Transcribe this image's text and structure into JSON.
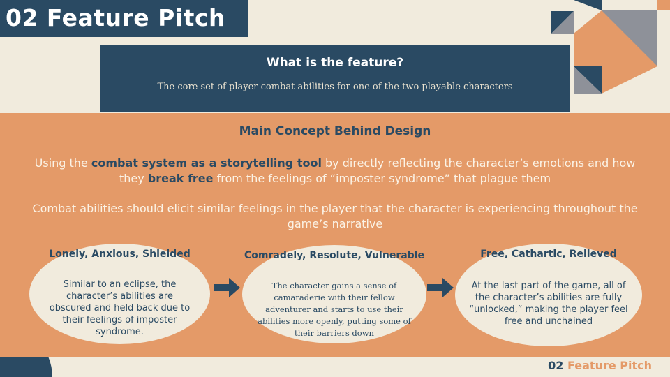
{
  "header": {
    "title": "02 Feature Pitch"
  },
  "feature": {
    "question": "What is the feature?",
    "answer": "The core set of player combat abilities for one of the two playable characters"
  },
  "concept": {
    "title": "Main Concept Behind Design",
    "para1": {
      "t1": "Using the ",
      "h1": "combat system as a storytelling tool",
      "t2": " by directly reflecting the character’s emotions and how they ",
      "h2": "break free",
      "t3": " from the feelings of “imposter syndrome” that plague them"
    },
    "para2": "Combat abilities should elicit similar feelings in the player that the character is experiencing throughout the game’s narrative"
  },
  "stages": [
    {
      "title": "Lonely, Anxious, Shielded",
      "body": "Similar to an eclipse, the character’s abilities are obscured and held back due to their feelings of imposter syndrome."
    },
    {
      "title": "Comradely, Resolute, Vulnerable",
      "body": "The character gains a sense of camaraderie with their fellow adventurer and starts to use their abilities more openly, putting some of their barriers down"
    },
    {
      "title": "Free, Cathartic, Relieved",
      "body": "At the last part of the game, all of the character’s abilities are fully “unlocked,” making the player feel free and unchained"
    }
  ],
  "footer": {
    "number": "02",
    "label": "Feature Pitch"
  },
  "colors": {
    "navy": "#2a4a63",
    "orange": "#e49a68",
    "cream": "#f1ebdd",
    "gray": "#8e9199"
  },
  "icons": {
    "arrow": "arrow-right-icon"
  }
}
